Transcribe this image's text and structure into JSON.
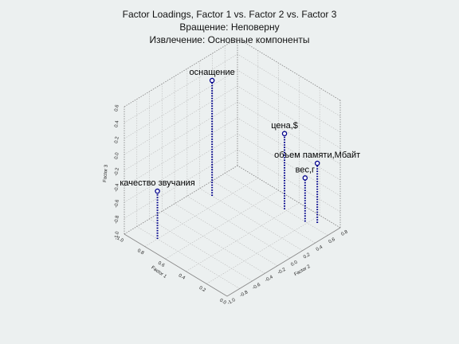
{
  "chart_data": {
    "type": "scatter3d",
    "title": "Factor Loadings, Factor 1 vs. Factor 2 vs. Factor 3",
    "subtitle": "Вращение: Неповерну",
    "subtitle2": "Извлечение: Основные компоненты",
    "xlabel": "Factor 1",
    "ylabel": "Factor 2",
    "zlabel": "Factor 3",
    "xlim": [
      0.0,
      1.0
    ],
    "ylim": [
      -1.0,
      0.8
    ],
    "zlim": [
      -1.0,
      0.6
    ],
    "x_ticks": [
      "0.0",
      "0.2",
      "0.4",
      "0.6",
      "0.8",
      "1.0"
    ],
    "y_ticks": [
      "-1.0",
      "-0.8",
      "-0.6",
      "-0.4",
      "-0.2",
      "0.0",
      "0.2",
      "0.4",
      "0.6",
      "0.8"
    ],
    "z_ticks": [
      "-1.0",
      "-0.8",
      "-0.6",
      "-0.4",
      "-0.2",
      "0.0",
      "0.2",
      "0.4",
      "0.6"
    ],
    "grid": true,
    "points": [
      {
        "label": "объем памяти,Мбайт",
        "x": 0.15,
        "y": 0.68,
        "z": -0.25
      },
      {
        "label": "вес,г",
        "x": 0.22,
        "y": 0.6,
        "z": -0.45
      },
      {
        "label": "цена,$",
        "x": 0.42,
        "y": 0.6,
        "z": -0.05
      },
      {
        "label": "оснащение",
        "x": 0.88,
        "y": 0.2,
        "z": 0.45
      },
      {
        "label": "качество звучания",
        "x": 0.8,
        "y": -0.8,
        "z": -0.4
      }
    ],
    "colors": {
      "marker": "#00008b",
      "grid": "#bbbbbb",
      "box": "#888888"
    }
  }
}
